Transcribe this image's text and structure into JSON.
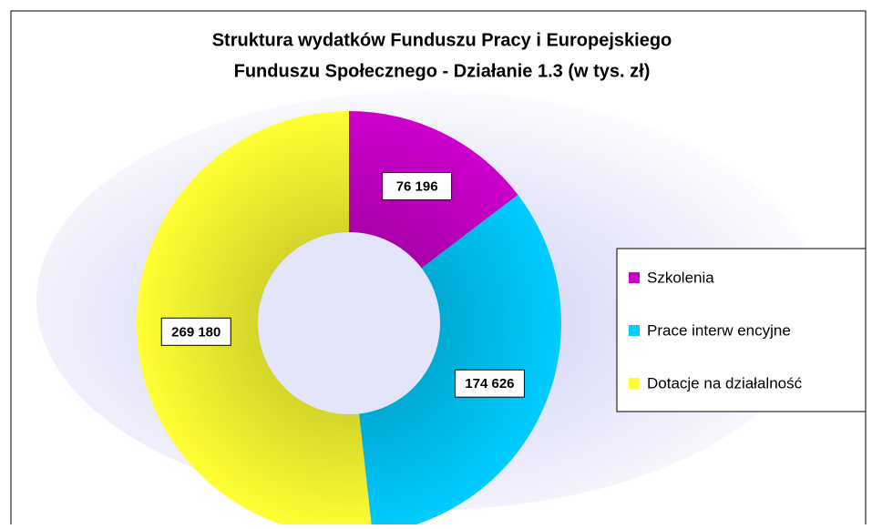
{
  "chart_data": {
    "type": "donut",
    "title": [
      "Struktura wydatków Funduszu Pracy i Europejskiego",
      "Funduszu Społecznego - Działanie 1.3 (w tys. zł)"
    ],
    "categories": [
      "Szkolenia",
      "Prace interw encyjne",
      "Dotacje na działalność"
    ],
    "values": [
      76196,
      174626,
      269180
    ],
    "value_labels": [
      "76 196",
      "174 626",
      "269 180"
    ],
    "colors": [
      "#cc00cc",
      "#00ccff",
      "#ffff33"
    ],
    "legend": "right"
  }
}
